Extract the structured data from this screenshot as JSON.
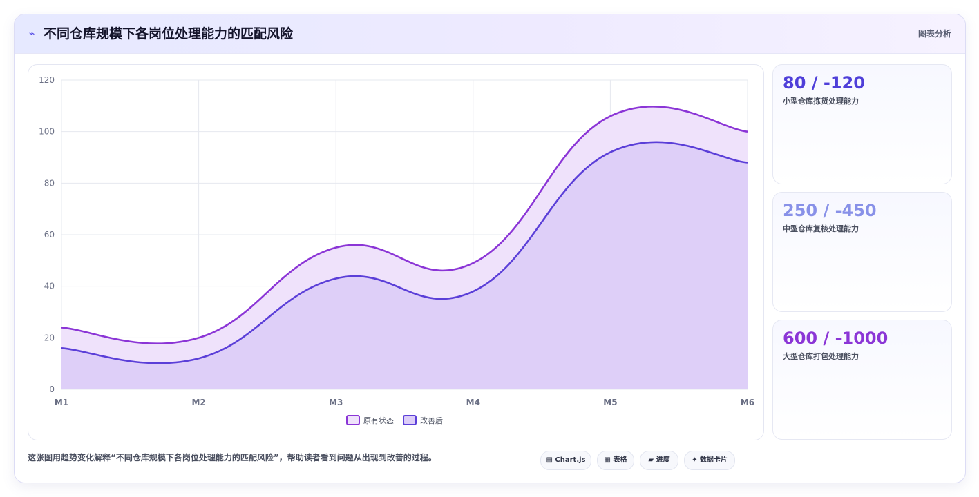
{
  "header": {
    "icon": "chart-line-icon",
    "title": "不同仓库规模下各岗位处理能力的匹配风险",
    "right_label": "图表分析"
  },
  "chart_data": {
    "type": "area",
    "categories": [
      "M1",
      "M2",
      "M3",
      "M4",
      "M5",
      "M6"
    ],
    "ylim": [
      0,
      120
    ],
    "yticks": [
      "0",
      "20",
      "40",
      "60",
      "80",
      "100",
      "120"
    ],
    "grid": true,
    "legend_position": "bottom",
    "series": [
      {
        "name": "原有状态",
        "values": [
          24,
          20,
          55,
          49,
          106,
          100
        ],
        "color": "#8b35d6",
        "fill": "#efe2fb"
      },
      {
        "name": "改善后",
        "values": [
          16,
          12,
          43,
          38,
          92,
          88
        ],
        "color": "#5b3fd8",
        "fill": "#dccdf8"
      }
    ]
  },
  "stats": [
    {
      "value": "80 / -120",
      "label": "小型仓库拣货处理能力",
      "color": "#4f3fd9"
    },
    {
      "value": "250 / -450",
      "label": "中型仓库复核处理能力",
      "color": "#8891e8"
    },
    {
      "value": "600 / -1000",
      "label": "大型仓库打包处理能力",
      "color": "#8b35d6"
    }
  ],
  "footer": {
    "text": "这张图用趋势变化解释“不同仓库规模下各岗位处理能力的匹配风险”，帮助读者看到问题从出现到改善的过程。",
    "pills": [
      {
        "icon_char": "▤",
        "label": "Chart.js"
      },
      {
        "icon_char": "▦",
        "label": "表格"
      },
      {
        "icon_char": "▰",
        "label": "进度"
      },
      {
        "icon_char": "✦",
        "label": "数据卡片"
      }
    ]
  }
}
